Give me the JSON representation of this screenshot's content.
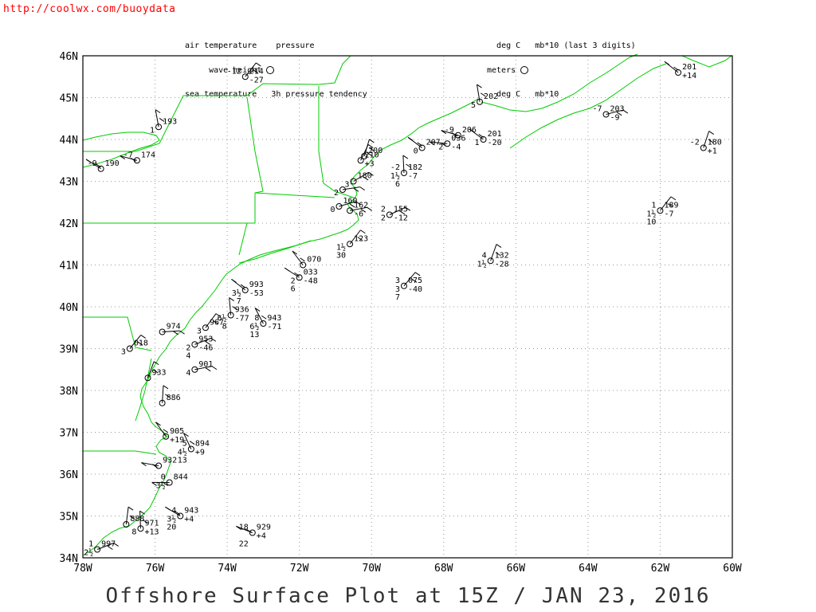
{
  "source_url": "http://coolwx.com/buoydata",
  "legend_left": {
    "line1_a": "air temperature",
    "line1_b": "pressure",
    "line2_a": "wave height",
    "line3_a": "sea temperature",
    "line3_b": "3h pressure tendency"
  },
  "legend_right": {
    "line1_a": "deg C",
    "line1_b": "mb*10 (last 3 digits)",
    "line2_a": "meters",
    "line3_a": "deg C",
    "line3_b": "mb*10"
  },
  "title": "Offshore Surface Plot at 15Z / JAN 23, 2016",
  "map": {
    "lon_range": [
      -78,
      -60
    ],
    "lat_range": [
      34,
      46
    ],
    "lon_ticks": [
      "78W",
      "76W",
      "74W",
      "72W",
      "70W",
      "68W",
      "66W",
      "64W",
      "62W",
      "60W"
    ],
    "lat_ticks": [
      "46N",
      "45N",
      "44N",
      "43N",
      "42N",
      "41N",
      "40N",
      "39N",
      "38N",
      "37N",
      "36N",
      "35N",
      "34N"
    ],
    "grid": "dotted",
    "coast_color": "#00cc00",
    "plot_color": "#000000"
  },
  "stations": [
    {
      "lon": -73.5,
      "lat": 45.5,
      "air": "-12",
      "pres": "214",
      "tend": "-27"
    },
    {
      "lon": -61.5,
      "lat": 45.6,
      "air": "",
      "pres": "201",
      "tend": "+14"
    },
    {
      "lon": -67.0,
      "lat": 44.9,
      "air": "",
      "pres": "202",
      "tend": "",
      "wave": "5"
    },
    {
      "lon": -63.5,
      "lat": 44.6,
      "air": "-7",
      "pres": "203",
      "tend": "-9"
    },
    {
      "lon": -75.9,
      "lat": 44.3,
      "air": "",
      "pres": "193",
      "tend": "",
      "wave": "1"
    },
    {
      "lon": -77.5,
      "lat": 43.3,
      "air": "-9",
      "pres": "190",
      "tend": ""
    },
    {
      "lon": -76.5,
      "lat": 43.5,
      "air": "-7",
      "pres": "174",
      "tend": ""
    },
    {
      "lon": -67.6,
      "lat": 44.1,
      "air": "-9",
      "pres": "206",
      "tend": ""
    },
    {
      "lon": -66.9,
      "lat": 44.0,
      "air": "",
      "pres": "201",
      "tend": "-20",
      "wave": "1"
    },
    {
      "lon": -67.9,
      "lat": 43.9,
      "air": "",
      "pres": "036",
      "tend": "-4",
      "wave": "2"
    },
    {
      "lon": -68.6,
      "lat": 43.8,
      "air": "",
      "pres": "207",
      "tend": "",
      "wave": "0"
    },
    {
      "lon": -60.8,
      "lat": 43.8,
      "air": "-2",
      "pres": "180",
      "tend": "+1"
    },
    {
      "lon": -70.2,
      "lat": 43.6,
      "air": "",
      "pres": "200",
      "tend": ""
    },
    {
      "lon": -70.3,
      "lat": 43.5,
      "air": "",
      "pres": "210",
      "tend": "+3"
    },
    {
      "lon": -69.1,
      "lat": 43.2,
      "air": "-2",
      "pres": "182",
      "tend": "-7",
      "wave": "1½",
      "sea": "6"
    },
    {
      "lon": -70.5,
      "lat": 43.0,
      "air": "",
      "pres": "180",
      "tend": "",
      "wave": "3"
    },
    {
      "lon": -70.8,
      "lat": 42.8,
      "air": "",
      "pres": "",
      "tend": "",
      "wave": "2"
    },
    {
      "lon": -70.9,
      "lat": 42.4,
      "air": "",
      "pres": "160",
      "tend": "",
      "wave": "0"
    },
    {
      "lon": -70.6,
      "lat": 42.3,
      "air": "",
      "pres": "162",
      "tend": "-6"
    },
    {
      "lon": -69.5,
      "lat": 42.2,
      "air": "2",
      "pres": "155",
      "tend": "-12",
      "wave": "2"
    },
    {
      "lon": -62.0,
      "lat": 42.3,
      "air": "1",
      "pres": "189",
      "tend": "-7",
      "wave": "1½",
      "sea": "10"
    },
    {
      "lon": -66.7,
      "lat": 41.1,
      "air": "4",
      "pres": "132",
      "tend": "-28",
      "wave": "1½"
    },
    {
      "lon": -70.6,
      "lat": 41.5,
      "air": "",
      "pres": "123",
      "tend": "",
      "wave": "1½",
      "sea": "30"
    },
    {
      "lon": -71.9,
      "lat": 41.0,
      "air": "",
      "pres": "070",
      "tend": ""
    },
    {
      "lon": -72.0,
      "lat": 40.7,
      "air": "",
      "pres": "033",
      "tend": "-48",
      "wave": "2",
      "sea": "6"
    },
    {
      "lon": -69.1,
      "lat": 40.5,
      "air": "3",
      "pres": "075",
      "tend": "-40",
      "wave": "3",
      "sea": "7"
    },
    {
      "lon": -73.5,
      "lat": 40.4,
      "air": "",
      "pres": "993",
      "tend": "-53",
      "wave": "3½",
      "sea": "7"
    },
    {
      "lon": -73.0,
      "lat": 39.6,
      "air": "8",
      "pres": "943",
      "tend": "-71",
      "wave": "6½",
      "sea": "13"
    },
    {
      "lon": -73.9,
      "lat": 39.8,
      "air": "",
      "pres": "936",
      "tend": "-77",
      "wave": "6½",
      "sea": "8"
    },
    {
      "lon": -74.6,
      "lat": 39.5,
      "air": "",
      "pres": "967",
      "tend": "",
      "wave": "3"
    },
    {
      "lon": -75.8,
      "lat": 39.4,
      "air": "",
      "pres": "974",
      "tend": ""
    },
    {
      "lon": -74.9,
      "lat": 39.1,
      "air": "",
      "pres": "953",
      "tend": "-46",
      "wave": "2",
      "sea": "4"
    },
    {
      "lon": -76.7,
      "lat": 39.0,
      "air": "",
      "pres": "018",
      "tend": "",
      "wave": "3"
    },
    {
      "lon": -74.9,
      "lat": 38.5,
      "air": "",
      "pres": "901",
      "tend": "",
      "wave": "4"
    },
    {
      "lon": -76.2,
      "lat": 38.3,
      "air": "",
      "pres": "933",
      "tend": ""
    },
    {
      "lon": -75.8,
      "lat": 37.7,
      "air": "",
      "pres": "886",
      "tend": ""
    },
    {
      "lon": -75.7,
      "lat": 36.9,
      "air": "",
      "pres": "905",
      "tend": "+19"
    },
    {
      "lon": -75.0,
      "lat": 36.6,
      "air": "5",
      "pres": "894",
      "tend": "+9",
      "wave": "4½",
      "sea": "13"
    },
    {
      "lon": -75.9,
      "lat": 36.2,
      "air": "",
      "pres": "932",
      "tend": ""
    },
    {
      "lon": -75.6,
      "lat": 35.8,
      "air": "0",
      "pres": "844",
      "tend": "",
      "wave": "3½"
    },
    {
      "lon": -75.3,
      "lat": 35.0,
      "air": "4",
      "pres": "943",
      "tend": "+4",
      "wave": "3½",
      "sea": "20"
    },
    {
      "lon": -73.3,
      "lat": 34.6,
      "air": "18",
      "pres": "929",
      "tend": "+4",
      "sea": "22"
    },
    {
      "lon": -76.4,
      "lat": 34.7,
      "air": "",
      "pres": "971",
      "tend": "+13",
      "wave": "8"
    },
    {
      "lon": -76.8,
      "lat": 34.8,
      "air": "",
      "pres": "888",
      "tend": ""
    },
    {
      "lon": -77.6,
      "lat": 34.2,
      "air": "1",
      "pres": "997",
      "tend": "",
      "wave": "2½"
    }
  ]
}
